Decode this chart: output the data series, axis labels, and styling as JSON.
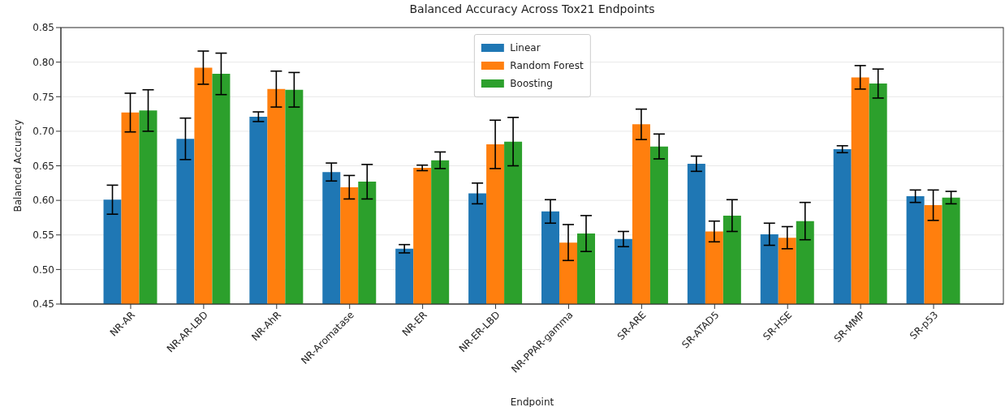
{
  "chart_data": {
    "type": "bar",
    "title": "Balanced Accuracy Across Tox21 Endpoints",
    "xlabel": "Endpoint",
    "ylabel": "Balanced Accuracy",
    "categories": [
      "NR-AR",
      "NR-AR-LBD",
      "NR-AhR",
      "NR-Aromatase",
      "NR-ER",
      "NR-ER-LBD",
      "NR-PPAR-gamma",
      "SR-ARE",
      "SR-ATAD5",
      "SR-HSE",
      "SR-MMP",
      "SR-p53"
    ],
    "series": [
      {
        "name": "Linear",
        "color": "#1f77b4",
        "values": [
          0.601,
          0.689,
          0.721,
          0.641,
          0.53,
          0.61,
          0.584,
          0.544,
          0.653,
          0.551,
          0.674,
          0.606
        ],
        "errors": [
          0.021,
          0.03,
          0.007,
          0.013,
          0.006,
          0.015,
          0.017,
          0.011,
          0.011,
          0.016,
          0.005,
          0.009
        ]
      },
      {
        "name": "Random Forest",
        "color": "#ff7f0e",
        "values": [
          0.727,
          0.792,
          0.761,
          0.619,
          0.647,
          0.681,
          0.539,
          0.71,
          0.555,
          0.546,
          0.778,
          0.593
        ],
        "errors": [
          0.028,
          0.024,
          0.026,
          0.017,
          0.004,
          0.035,
          0.026,
          0.022,
          0.015,
          0.016,
          0.017,
          0.022
        ]
      },
      {
        "name": "Boosting",
        "color": "#2ca02c",
        "values": [
          0.73,
          0.783,
          0.76,
          0.627,
          0.658,
          0.685,
          0.552,
          0.678,
          0.578,
          0.57,
          0.769,
          0.604
        ],
        "errors": [
          0.03,
          0.03,
          0.025,
          0.025,
          0.012,
          0.035,
          0.026,
          0.018,
          0.023,
          0.027,
          0.021,
          0.009
        ]
      }
    ],
    "ylim": [
      0.45,
      0.85
    ],
    "yticks": [
      0.45,
      {
        "value": 0.5,
        "label": "0.50"
      },
      0.55,
      {
        "value": 0.6,
        "label": "0.60"
      },
      0.65,
      {
        "value": 0.7,
        "label": "0.70"
      },
      0.75,
      {
        "value": 0.8,
        "label": "0.80"
      },
      0.85
    ],
    "grid": "y",
    "legend": "top"
  }
}
